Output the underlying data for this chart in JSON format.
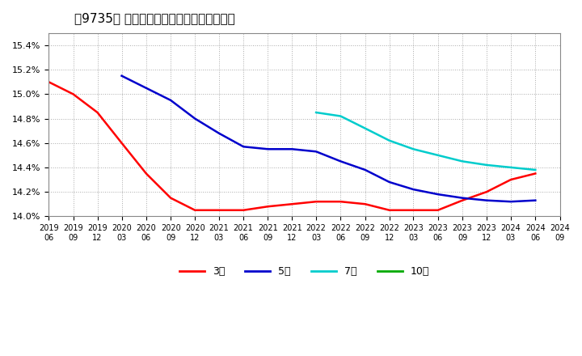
{
  "title": "［9735］ 経常利益マージンの平均値の推移",
  "background_color": "#ffffff",
  "plot_bg_color": "#ffffff",
  "grid_color": "#aaaaaa",
  "ylim": [
    14.0,
    15.5
  ],
  "yticks": [
    14.0,
    14.2,
    14.4,
    14.6,
    14.8,
    15.0,
    15.2,
    15.4
  ],
  "series": {
    "3年": {
      "color": "#ff0000",
      "x": [
        "2019/06",
        "2019/09",
        "2019/12",
        "2020/03",
        "2020/06",
        "2020/09",
        "2020/12",
        "2021/03",
        "2021/06",
        "2021/09",
        "2021/12",
        "2022/03",
        "2022/06",
        "2022/09",
        "2022/12",
        "2023/03",
        "2023/06",
        "2023/09",
        "2023/12",
        "2024/03",
        "2024/06"
      ],
      "y": [
        15.1,
        15.0,
        14.85,
        14.6,
        14.35,
        14.15,
        14.05,
        14.05,
        14.05,
        14.08,
        14.1,
        14.12,
        14.12,
        14.1,
        14.05,
        14.05,
        14.05,
        14.13,
        14.2,
        14.3,
        14.35
      ]
    },
    "5年": {
      "color": "#0000cc",
      "x": [
        "2019/06",
        "2019/09",
        "2019/12",
        "2020/03",
        "2020/06",
        "2020/09",
        "2020/12",
        "2021/03",
        "2021/06",
        "2021/09",
        "2021/12",
        "2022/03",
        "2022/06",
        "2022/09",
        "2022/12",
        "2023/03",
        "2023/06",
        "2023/09",
        "2023/12",
        "2024/03",
        "2024/06"
      ],
      "y": [
        null,
        null,
        null,
        15.15,
        15.05,
        14.95,
        14.8,
        14.68,
        14.57,
        14.55,
        14.55,
        14.53,
        14.45,
        14.38,
        14.28,
        14.22,
        14.18,
        14.15,
        14.13,
        14.12,
        14.13
      ]
    },
    "7年": {
      "color": "#00cccc",
      "x": [
        "2022/03",
        "2022/06",
        "2022/09",
        "2022/12",
        "2023/03",
        "2023/06",
        "2023/09",
        "2023/12",
        "2024/03",
        "2024/06"
      ],
      "y": [
        14.85,
        14.82,
        14.72,
        14.62,
        14.55,
        14.5,
        14.45,
        14.42,
        14.4,
        14.38
      ]
    },
    "10年": {
      "color": "#00aa00",
      "x": [],
      "y": []
    }
  },
  "xtick_labels": [
    "2019/06",
    "2019/09",
    "2019/12",
    "2020/03",
    "2020/06",
    "2020/09",
    "2020/12",
    "2021/03",
    "2021/06",
    "2021/09",
    "2021/12",
    "2022/03",
    "2022/06",
    "2022/09",
    "2022/12",
    "2023/03",
    "2023/06",
    "2023/09",
    "2023/12",
    "2024/03",
    "2024/06",
    "2024/09"
  ],
  "legend_labels": [
    "3年",
    "5年",
    "7年",
    "10年"
  ],
  "legend_colors": [
    "#ff0000",
    "#0000cc",
    "#00cccc",
    "#00aa00"
  ]
}
